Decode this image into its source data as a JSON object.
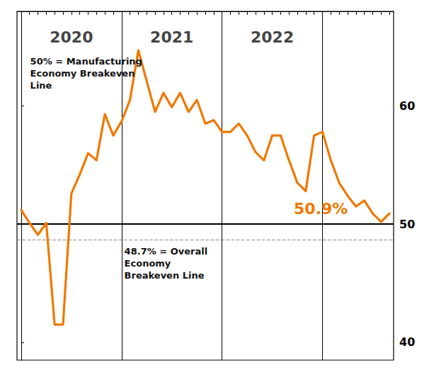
{
  "chart_data": {
    "type": "line",
    "color": "#F07800",
    "x": [
      0,
      1,
      2,
      3,
      4,
      5,
      6,
      7,
      8,
      9,
      10,
      11,
      12,
      13,
      14,
      15,
      16,
      17,
      18,
      19,
      20,
      21,
      22,
      23,
      24,
      25,
      26,
      27,
      28,
      29,
      30,
      31,
      32,
      33,
      34,
      35,
      36,
      37,
      38,
      39,
      40,
      41,
      42,
      43,
      44
    ],
    "values": [
      51.2,
      50.1,
      49.1,
      50.1,
      41.5,
      41.5,
      52.6,
      54.2,
      56.0,
      55.4,
      59.3,
      57.5,
      58.7,
      60.5,
      64.7,
      62.1,
      59.5,
      61.1,
      59.9,
      61.1,
      59.5,
      60.5,
      58.5,
      58.8,
      57.8,
      57.8,
      58.5,
      57.5,
      56.1,
      55.4,
      57.5,
      57.5,
      55.4,
      53.5,
      52.8,
      57.5,
      57.8,
      55.4,
      53.5,
      52.4,
      51.5,
      52.0,
      50.9,
      50.2,
      50.9
    ],
    "xlim": [
      -0.5,
      44.5
    ],
    "xticks": [
      0,
      1,
      2,
      3,
      4,
      5,
      6,
      7,
      8,
      9,
      10,
      11,
      12,
      13,
      14,
      15,
      16,
      17,
      18,
      19,
      20,
      21,
      22,
      23,
      24,
      25,
      26,
      27,
      28,
      29,
      30,
      31,
      32,
      33,
      34,
      35,
      36,
      37,
      38,
      39,
      40,
      41,
      42,
      43,
      44
    ],
    "ylim": [
      38.5,
      68
    ],
    "yticks": [
      40,
      50,
      60
    ],
    "tick_labels": "y",
    "grid": false,
    "hlines": [
      {
        "value": 50,
        "color": "#000000",
        "line_style": "solid"
      },
      {
        "value": 48.7,
        "color": "#888888",
        "line_style": "dashed"
      }
    ],
    "vlines": [
      12,
      24,
      36
    ],
    "annotations": [
      {
        "text": "2020",
        "x": 6,
        "y": 66.5
      },
      {
        "text": "2021",
        "x": 18,
        "y": 66.5
      },
      {
        "text": "2022",
        "x": 30,
        "y": 66.5
      },
      {
        "text": "50% = Manufacturing\nEconomy Breakeven\nLine"
      },
      {
        "text": "48.7% = Overall\nEconomy\nBreakeven Line"
      },
      {
        "text": "50.9%",
        "color": "#F07800"
      }
    ]
  }
}
